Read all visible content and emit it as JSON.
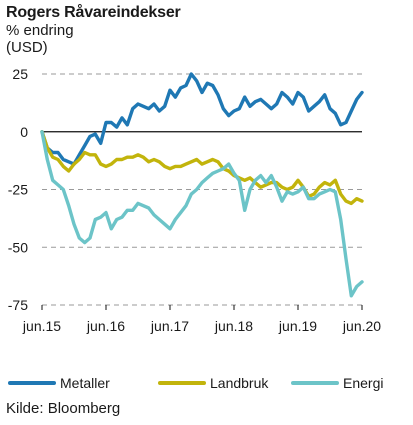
{
  "title": "Rogers Råvareindekser",
  "subtitle_lines": [
    "% endring",
    "(USD)"
  ],
  "source": "Kilde: Bloomberg",
  "chart_data": {
    "type": "line",
    "title": "Rogers Råvareindekser",
    "ylabel": "% endring (USD)",
    "xlabel": "",
    "ylim": [
      -75,
      25
    ],
    "xlim": [
      "2015-06",
      "2020-06"
    ],
    "yticks": [
      25,
      0,
      -25,
      -50,
      -75
    ],
    "xticks": [
      {
        "date": "2015-06",
        "label": "jun.15"
      },
      {
        "date": "2016-06",
        "label": "jun.16"
      },
      {
        "date": "2017-06",
        "label": "jun.17"
      },
      {
        "date": "2018-06",
        "label": "jun.18"
      },
      {
        "date": "2019-06",
        "label": "jun.19"
      },
      {
        "date": "2020-06",
        "label": "jun.20"
      }
    ],
    "grid": "horizontal dashed",
    "legend_position": "bottom",
    "series": [
      {
        "name": "Metaller",
        "color": "#1f78b4",
        "points": [
          [
            "2015-06",
            0
          ],
          [
            "2015-07",
            -7
          ],
          [
            "2015-08",
            -9
          ],
          [
            "2015-09",
            -9
          ],
          [
            "2015-10",
            -12
          ],
          [
            "2015-11",
            -13
          ],
          [
            "2015-12",
            -14
          ],
          [
            "2016-01",
            -10
          ],
          [
            "2016-02",
            -6
          ],
          [
            "2016-03",
            -2
          ],
          [
            "2016-04",
            -1
          ],
          [
            "2016-05",
            -5
          ],
          [
            "2016-06",
            4
          ],
          [
            "2016-07",
            4
          ],
          [
            "2016-08",
            2
          ],
          [
            "2016-09",
            6
          ],
          [
            "2016-10",
            3
          ],
          [
            "2016-11",
            10
          ],
          [
            "2016-12",
            12
          ],
          [
            "2017-01",
            11
          ],
          [
            "2017-02",
            10
          ],
          [
            "2017-03",
            12
          ],
          [
            "2017-04",
            9
          ],
          [
            "2017-05",
            11
          ],
          [
            "2017-06",
            18
          ],
          [
            "2017-07",
            15
          ],
          [
            "2017-08",
            19
          ],
          [
            "2017-09",
            20
          ],
          [
            "2017-10",
            25
          ],
          [
            "2017-11",
            22
          ],
          [
            "2017-12",
            17
          ],
          [
            "2018-01",
            21
          ],
          [
            "2018-02",
            20
          ],
          [
            "2018-03",
            16
          ],
          [
            "2018-04",
            10
          ],
          [
            "2018-05",
            7
          ],
          [
            "2018-06",
            9
          ],
          [
            "2018-07",
            10
          ],
          [
            "2018-08",
            15
          ],
          [
            "2018-09",
            11
          ],
          [
            "2018-10",
            13
          ],
          [
            "2018-11",
            14
          ],
          [
            "2018-12",
            12
          ],
          [
            "2019-01",
            10
          ],
          [
            "2019-02",
            12
          ],
          [
            "2019-03",
            17
          ],
          [
            "2019-04",
            15
          ],
          [
            "2019-05",
            12
          ],
          [
            "2019-06",
            17
          ],
          [
            "2019-07",
            15
          ],
          [
            "2019-08",
            9
          ],
          [
            "2019-09",
            11
          ],
          [
            "2019-10",
            13
          ],
          [
            "2019-11",
            16
          ],
          [
            "2019-12",
            10
          ],
          [
            "2020-01",
            8
          ],
          [
            "2020-02",
            3
          ],
          [
            "2020-03",
            4
          ],
          [
            "2020-04",
            9
          ],
          [
            "2020-05",
            14
          ],
          [
            "2020-06",
            17
          ]
        ]
      },
      {
        "name": "Landbruk",
        "color": "#c2b40c",
        "points": [
          [
            "2015-06",
            0
          ],
          [
            "2015-07",
            -7
          ],
          [
            "2015-08",
            -11
          ],
          [
            "2015-09",
            -12
          ],
          [
            "2015-10",
            -15
          ],
          [
            "2015-11",
            -17
          ],
          [
            "2015-12",
            -14
          ],
          [
            "2016-01",
            -12
          ],
          [
            "2016-02",
            -9
          ],
          [
            "2016-03",
            -10
          ],
          [
            "2016-04",
            -10
          ],
          [
            "2016-05",
            -14
          ],
          [
            "2016-06",
            -15
          ],
          [
            "2016-07",
            -14
          ],
          [
            "2016-08",
            -12
          ],
          [
            "2016-09",
            -12
          ],
          [
            "2016-10",
            -11
          ],
          [
            "2016-11",
            -11
          ],
          [
            "2016-12",
            -10
          ],
          [
            "2017-01",
            -11
          ],
          [
            "2017-02",
            -13
          ],
          [
            "2017-03",
            -12
          ],
          [
            "2017-04",
            -13
          ],
          [
            "2017-05",
            -15
          ],
          [
            "2017-06",
            -16
          ],
          [
            "2017-07",
            -15
          ],
          [
            "2017-08",
            -15
          ],
          [
            "2017-09",
            -14
          ],
          [
            "2017-10",
            -13
          ],
          [
            "2017-11",
            -12
          ],
          [
            "2017-12",
            -14
          ],
          [
            "2018-01",
            -13
          ],
          [
            "2018-02",
            -12
          ],
          [
            "2018-03",
            -13
          ],
          [
            "2018-04",
            -16
          ],
          [
            "2018-05",
            -17
          ],
          [
            "2018-06",
            -19
          ],
          [
            "2018-07",
            -20
          ],
          [
            "2018-08",
            -21
          ],
          [
            "2018-09",
            -20
          ],
          [
            "2018-10",
            -22
          ],
          [
            "2018-11",
            -24
          ],
          [
            "2018-12",
            -23
          ],
          [
            "2019-01",
            -22
          ],
          [
            "2019-02",
            -22
          ],
          [
            "2019-03",
            -24
          ],
          [
            "2019-04",
            -25
          ],
          [
            "2019-05",
            -24
          ],
          [
            "2019-06",
            -21
          ],
          [
            "2019-07",
            -24
          ],
          [
            "2019-08",
            -28
          ],
          [
            "2019-09",
            -27
          ],
          [
            "2019-10",
            -24
          ],
          [
            "2019-11",
            -22
          ],
          [
            "2019-12",
            -23
          ],
          [
            "2020-01",
            -21
          ],
          [
            "2020-02",
            -27
          ],
          [
            "2020-03",
            -30
          ],
          [
            "2020-04",
            -31
          ],
          [
            "2020-05",
            -29
          ],
          [
            "2020-06",
            -30
          ]
        ]
      },
      {
        "name": "Energi",
        "color": "#6cc4c8",
        "points": [
          [
            "2015-06",
            0
          ],
          [
            "2015-07",
            -12
          ],
          [
            "2015-08",
            -21
          ],
          [
            "2015-09",
            -23
          ],
          [
            "2015-10",
            -25
          ],
          [
            "2015-11",
            -32
          ],
          [
            "2015-12",
            -40
          ],
          [
            "2016-01",
            -46
          ],
          [
            "2016-02",
            -48
          ],
          [
            "2016-03",
            -46
          ],
          [
            "2016-04",
            -38
          ],
          [
            "2016-05",
            -37
          ],
          [
            "2016-06",
            -35
          ],
          [
            "2016-07",
            -42
          ],
          [
            "2016-08",
            -38
          ],
          [
            "2016-09",
            -37
          ],
          [
            "2016-10",
            -34
          ],
          [
            "2016-11",
            -34
          ],
          [
            "2016-12",
            -31
          ],
          [
            "2017-01",
            -32
          ],
          [
            "2017-02",
            -33
          ],
          [
            "2017-03",
            -36
          ],
          [
            "2017-04",
            -38
          ],
          [
            "2017-05",
            -40
          ],
          [
            "2017-06",
            -42
          ],
          [
            "2017-07",
            -38
          ],
          [
            "2017-08",
            -35
          ],
          [
            "2017-09",
            -32
          ],
          [
            "2017-10",
            -27
          ],
          [
            "2017-11",
            -25
          ],
          [
            "2017-12",
            -22
          ],
          [
            "2018-01",
            -20
          ],
          [
            "2018-02",
            -18
          ],
          [
            "2018-03",
            -17
          ],
          [
            "2018-04",
            -16
          ],
          [
            "2018-05",
            -14
          ],
          [
            "2018-06",
            -18
          ],
          [
            "2018-07",
            -21
          ],
          [
            "2018-08",
            -34
          ],
          [
            "2018-09",
            -25
          ],
          [
            "2018-10",
            -21
          ],
          [
            "2018-11",
            -19
          ],
          [
            "2018-12",
            -22
          ],
          [
            "2019-01",
            -19
          ],
          [
            "2019-02",
            -24
          ],
          [
            "2019-03",
            -30
          ],
          [
            "2019-04",
            -26
          ],
          [
            "2019-05",
            -27
          ],
          [
            "2019-06",
            -26
          ],
          [
            "2019-07",
            -24
          ],
          [
            "2019-08",
            -29
          ],
          [
            "2019-09",
            -29
          ],
          [
            "2019-10",
            -27
          ],
          [
            "2019-11",
            -26
          ],
          [
            "2019-12",
            -25
          ],
          [
            "2020-01",
            -26
          ],
          [
            "2020-02",
            -38
          ],
          [
            "2020-03",
            -55
          ],
          [
            "2020-04",
            -71
          ],
          [
            "2020-05",
            -67
          ],
          [
            "2020-06",
            -65
          ]
        ]
      }
    ]
  }
}
